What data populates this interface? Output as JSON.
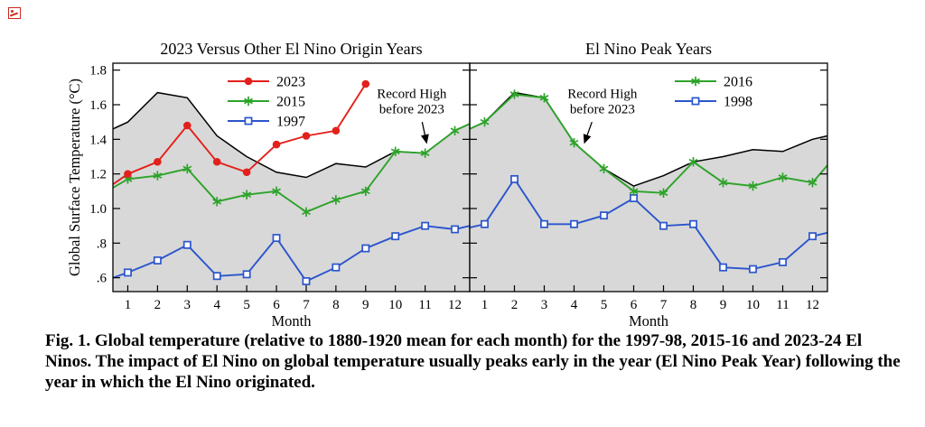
{
  "caption": "Fig. 1. Global temperature (relative to 1880-1920 mean for each month) for the 1997-98, 2015-16 and 2023-24 El Ninos. The impact of El Nino on global temperature usually peaks early in the year (El Nino Peak Year) following the year in which the El Nino originated.",
  "colors": {
    "red_2023": "#e3201b",
    "green_2015_2016": "#2da32a",
    "blue_1997_1998": "#2b55cc",
    "record_high_fill": "#d8d8d8",
    "axis": "#000000"
  },
  "chart_data": [
    {
      "type": "line",
      "title": "2023 Versus Other El Nino Origin Years",
      "xlabel": "Month",
      "ylabel": "Global Surface Temperature (°C)",
      "x": [
        1,
        2,
        3,
        4,
        5,
        6,
        7,
        8,
        9,
        10,
        11,
        12
      ],
      "ylim": [
        0.52,
        1.84
      ],
      "yticks": [
        0.6,
        0.8,
        1.0,
        1.2,
        1.4,
        1.6,
        1.8
      ],
      "ytick_labels": [
        ".6",
        ".8",
        "1.0",
        "1.2",
        "1.4",
        "1.6",
        "1.8"
      ],
      "legend_position": "top-left-inside",
      "record_high": {
        "label": "Record High before 2023",
        "fill": "#d8d8d8",
        "values": [
          1.5,
          1.67,
          1.64,
          1.42,
          1.3,
          1.21,
          1.18,
          1.26,
          1.24,
          1.33,
          1.32,
          1.45
        ],
        "edge_pre": 1.46,
        "edge_post": 1.49,
        "annotation": {
          "lines": [
            "Record High",
            "before 2023"
          ],
          "text_month": 10.55,
          "text_temp": 1.64,
          "arrow_from": {
            "month": 10.9,
            "temp": 1.5
          },
          "arrow_to": {
            "month": 11.05,
            "temp": 1.38
          }
        }
      },
      "series": [
        {
          "name": "2023",
          "color": "#e3201b",
          "marker": "circle",
          "values": [
            1.2,
            1.27,
            1.48,
            1.27,
            1.21,
            1.37,
            1.42,
            1.45,
            1.72
          ],
          "edge_pre": 1.14,
          "edge_post": null
        },
        {
          "name": "2015",
          "color": "#2da32a",
          "marker": "asterisk",
          "values": [
            1.17,
            1.19,
            1.23,
            1.04,
            1.08,
            1.1,
            0.98,
            1.05,
            1.1,
            1.33,
            1.32,
            1.45
          ],
          "edge_pre": 1.12,
          "edge_post": 1.49
        },
        {
          "name": "1997",
          "color": "#2b55cc",
          "marker": "square",
          "values": [
            0.63,
            0.7,
            0.79,
            0.61,
            0.62,
            0.83,
            0.58,
            0.66,
            0.77,
            0.84,
            0.9,
            0.88
          ],
          "edge_pre": 0.6,
          "edge_post": 0.9
        }
      ]
    },
    {
      "type": "line",
      "title": "El Nino Peak Years",
      "xlabel": "Month",
      "x": [
        1,
        2,
        3,
        4,
        5,
        6,
        7,
        8,
        9,
        10,
        11,
        12
      ],
      "ylim": [
        0.52,
        1.84
      ],
      "yticks": [
        0.6,
        0.8,
        1.0,
        1.2,
        1.4,
        1.6,
        1.8
      ],
      "ytick_labels": [
        ".6",
        ".8",
        "1.0",
        "1.2",
        "1.4",
        "1.6",
        "1.8"
      ],
      "legend_position": "top-right-inside",
      "record_high": {
        "label": "Record High before 2023",
        "fill": "#d8d8d8",
        "values": [
          1.5,
          1.67,
          1.64,
          1.38,
          1.23,
          1.13,
          1.19,
          1.27,
          1.3,
          1.34,
          1.33,
          1.4
        ],
        "edge_pre": 1.46,
        "edge_post": 1.42,
        "annotation": {
          "lines": [
            "Record High",
            "before 2023"
          ],
          "text_month": 4.95,
          "text_temp": 1.64,
          "arrow_from": {
            "month": 4.6,
            "temp": 1.5
          },
          "arrow_to": {
            "month": 4.35,
            "temp": 1.38
          }
        }
      },
      "series": [
        {
          "name": "2016",
          "color": "#2da32a",
          "marker": "asterisk",
          "values": [
            1.5,
            1.66,
            1.64,
            1.38,
            1.23,
            1.1,
            1.09,
            1.27,
            1.15,
            1.13,
            1.18,
            1.15
          ],
          "edge_pre": 1.46,
          "edge_post": 1.25
        },
        {
          "name": "1998",
          "color": "#2b55cc",
          "marker": "square",
          "values": [
            0.91,
            1.17,
            0.91,
            0.91,
            0.96,
            1.06,
            0.9,
            0.91,
            0.66,
            0.65,
            0.69,
            0.84
          ],
          "edge_pre": 0.89,
          "edge_post": 0.86
        }
      ]
    }
  ]
}
